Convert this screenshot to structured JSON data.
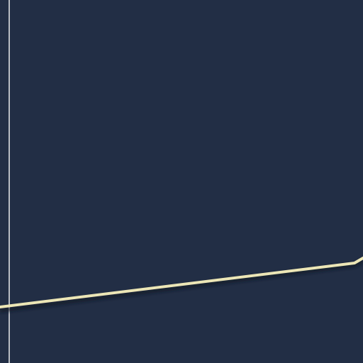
{
  "colors": {
    "background": "#222e45",
    "divider": "#b9bcc3",
    "line": "#ece6b6",
    "shadow": "#141b2a"
  },
  "icons": []
}
